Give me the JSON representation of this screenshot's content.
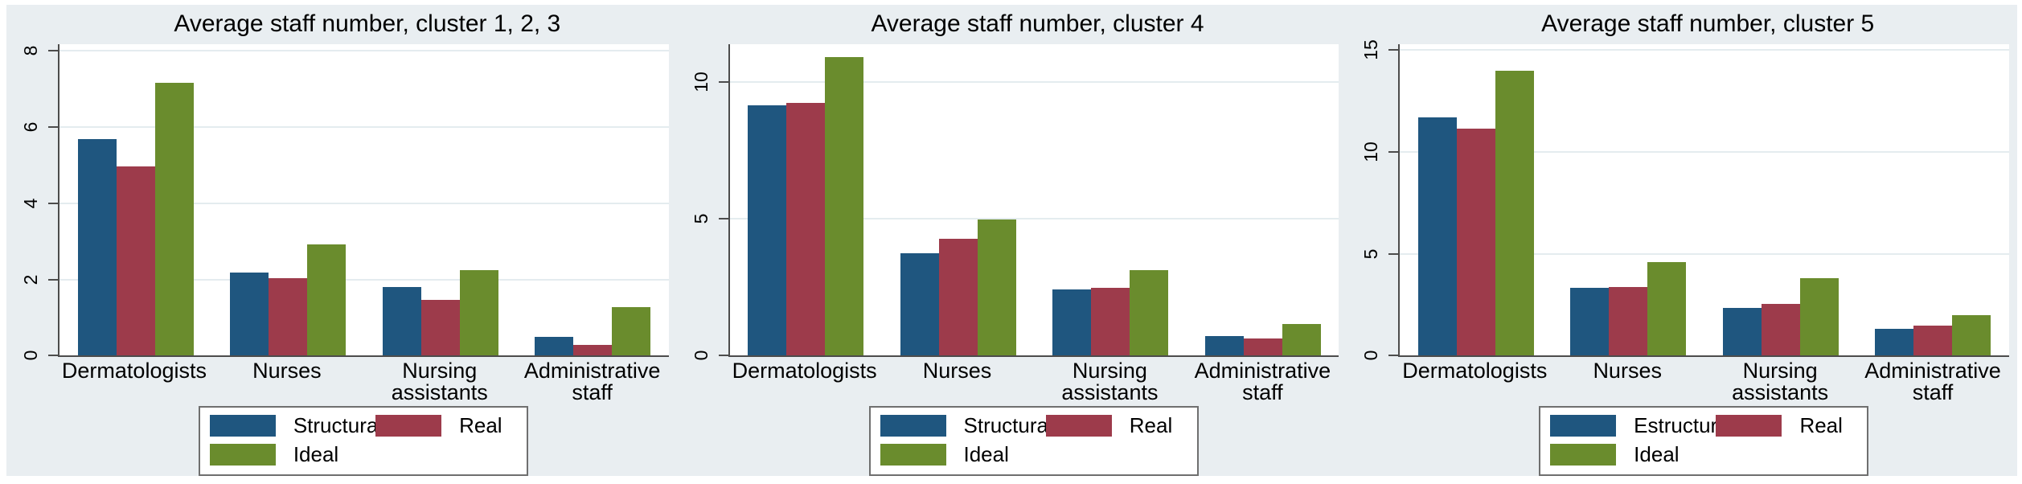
{
  "colors": {
    "structural": "#1f567f",
    "real": "#9d3b4b",
    "ideal": "#6a8c2d",
    "canvas_background": "#e9eef1",
    "plot_background": "#ffffff",
    "gridline": "#e4ecef",
    "axis": "#4c4c4c"
  },
  "chart_data": [
    {
      "type": "bar",
      "title": "Average staff number, cluster 1, 2, 3",
      "categories": [
        "Dermatologists",
        "Nurses",
        "Nursing\nassistants",
        "Administrative\nstaff"
      ],
      "series": [
        {
          "name": "Structural",
          "color": "#1f567f",
          "values": [
            5.85,
            2.25,
            1.85,
            0.5
          ]
        },
        {
          "name": "Real",
          "color": "#9d3b4b",
          "values": [
            5.1,
            2.1,
            1.5,
            0.3
          ]
        },
        {
          "name": "Ideal",
          "color": "#6a8c2d",
          "values": [
            7.35,
            3.0,
            2.3,
            1.3
          ]
        }
      ],
      "ylim": [
        0,
        8.4
      ],
      "yticks": [
        0,
        2,
        4,
        6,
        8
      ],
      "xlabel": "",
      "ylabel": "",
      "grid": true,
      "legend_position": "bottom"
    },
    {
      "type": "bar",
      "title": "Average staff number, cluster 4",
      "categories": [
        "Dermatologists",
        "Nurses",
        "Nursing\nassistants",
        "Administrative\nstaff"
      ],
      "series": [
        {
          "name": "Structural",
          "color": "#1f567f",
          "values": [
            9.4,
            3.85,
            2.5,
            0.75
          ]
        },
        {
          "name": "Real",
          "color": "#9d3b4b",
          "values": [
            9.5,
            4.4,
            2.55,
            0.65
          ]
        },
        {
          "name": "Ideal",
          "color": "#6a8c2d",
          "values": [
            11.2,
            5.1,
            3.2,
            1.2
          ]
        }
      ],
      "ylim": [
        0,
        11.7
      ],
      "yticks": [
        0,
        5,
        10
      ],
      "xlabel": "",
      "ylabel": "",
      "grid": true,
      "legend_position": "bottom"
    },
    {
      "type": "bar",
      "title": "Average staff number, cluster 5",
      "categories": [
        "Dermatologists",
        "Nurses",
        "Nursing\nassistants",
        "Administrative\nstaff"
      ],
      "series": [
        {
          "name": "Estructural",
          "color": "#1f567f",
          "values": [
            12.0,
            3.4,
            2.4,
            1.35
          ]
        },
        {
          "name": "Real",
          "color": "#9d3b4b",
          "values": [
            11.45,
            3.45,
            2.6,
            1.5
          ]
        },
        {
          "name": "Ideal",
          "color": "#6a8c2d",
          "values": [
            14.35,
            4.7,
            3.9,
            2.05
          ]
        }
      ],
      "ylim": [
        0,
        15.7
      ],
      "yticks": [
        0,
        5,
        10,
        15
      ],
      "xlabel": "",
      "ylabel": "",
      "grid": true,
      "legend_position": "bottom"
    }
  ]
}
